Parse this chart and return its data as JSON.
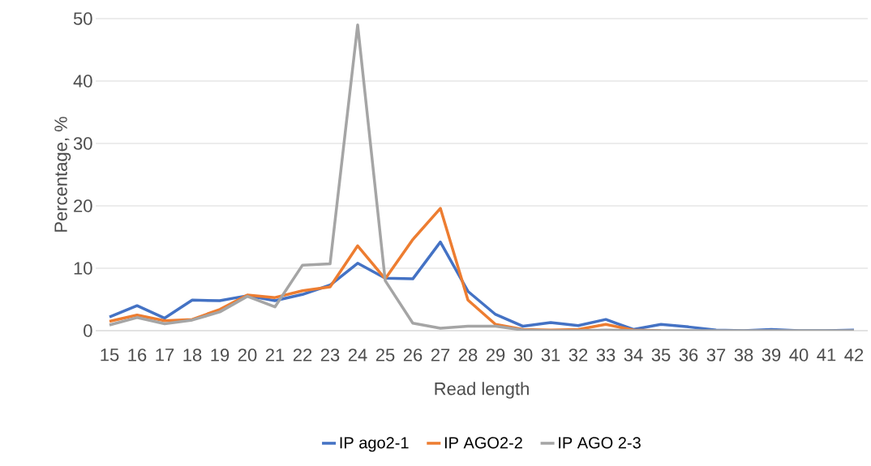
{
  "chart_data": {
    "type": "line",
    "xlabel": "Read length",
    "ylabel": "Percentage, %",
    "categories": [
      "15",
      "16",
      "17",
      "18",
      "19",
      "20",
      "21",
      "22",
      "23",
      "24",
      "25",
      "26",
      "27",
      "28",
      "29",
      "30",
      "31",
      "32",
      "33",
      "34",
      "35",
      "36",
      "37",
      "38",
      "39",
      "40",
      "41",
      "42"
    ],
    "series": [
      {
        "name": "IP ago2-1",
        "color": "#4472c4",
        "values": [
          2.2,
          4.0,
          2.0,
          4.9,
          4.8,
          5.6,
          4.8,
          5.8,
          7.3,
          10.8,
          8.4,
          8.3,
          14.2,
          6.3,
          2.6,
          0.7,
          1.3,
          0.8,
          1.8,
          0.2,
          1.0,
          0.6,
          0.1,
          0,
          0.2,
          0,
          0,
          0.1
        ]
      },
      {
        "name": "IP AGO2-2",
        "color": "#ed7d31",
        "values": [
          1.5,
          2.5,
          1.6,
          1.8,
          3.4,
          5.7,
          5.3,
          6.4,
          7.0,
          13.6,
          8.3,
          14.6,
          19.6,
          4.9,
          1.0,
          0.2,
          0.1,
          0.2,
          1.0,
          0.1,
          0,
          null,
          null,
          null,
          null,
          null,
          null,
          null
        ]
      },
      {
        "name": "IP AGO 2-3",
        "color": "#a5a5a5",
        "values": [
          0.9,
          2.1,
          1.1,
          1.7,
          3.0,
          5.5,
          3.8,
          10.5,
          10.7,
          49.0,
          8.0,
          1.2,
          0.4,
          0.7,
          0.7,
          0.1,
          0,
          0,
          0.1,
          0,
          0,
          0,
          0,
          0,
          0,
          0,
          0,
          0
        ]
      }
    ],
    "ylim": [
      0,
      50
    ],
    "yticks": [
      0,
      10,
      20,
      30,
      40,
      50
    ],
    "grid": "y",
    "legend": "bottom",
    "marker": "none",
    "line_style": "solid"
  }
}
